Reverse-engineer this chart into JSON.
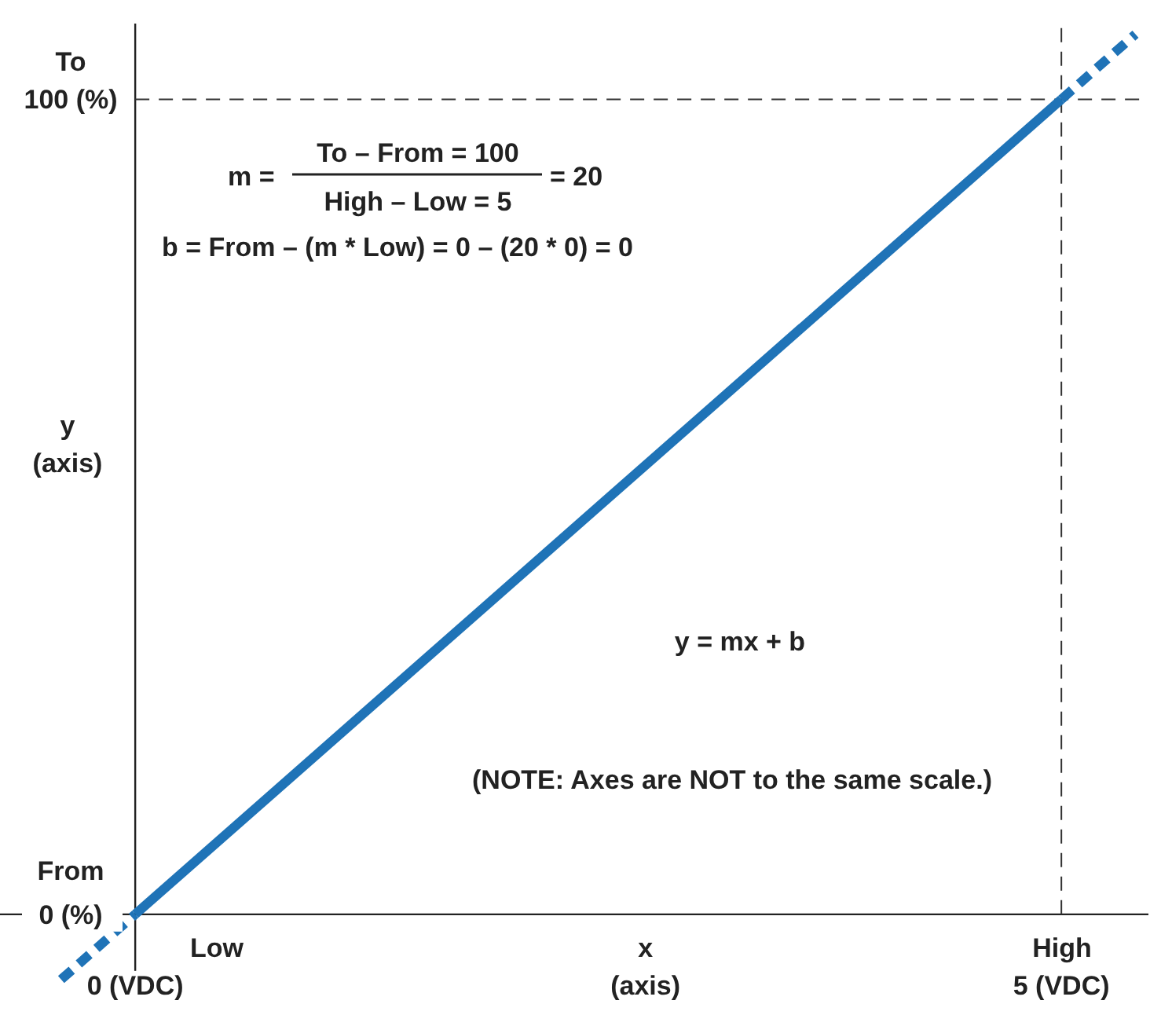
{
  "chart_data": {
    "type": "line",
    "xlabel": "x\n(axis)",
    "ylabel": "y\n(axis)",
    "xlim": [
      -0.73,
      5.47
    ],
    "ylim": [
      -8.5,
      109.3
    ],
    "xticks": [
      {
        "value": 0,
        "label": "0 (VDC)"
      },
      {
        "value": 5,
        "label": "5 (VDC)"
      }
    ],
    "yticks": [
      {
        "value": 0,
        "label": "0 (%)"
      },
      {
        "value": 100,
        "label": "100 (%)"
      }
    ],
    "series": [
      {
        "color": "#1f73b7",
        "x": [
          0,
          5
        ],
        "values": [
          0,
          100
        ],
        "line_style": "solid"
      },
      {
        "color": "#1f73b7",
        "x": [
          -0.4,
          0
        ],
        "values": [
          -8,
          0
        ],
        "line_style": "dashed"
      },
      {
        "color": "#1f73b7",
        "x": [
          5,
          5.4
        ],
        "values": [
          100,
          108
        ],
        "line_style": "dashed"
      }
    ],
    "ref_lines": [
      {
        "axis": "x",
        "value": 5,
        "color": "#333333",
        "line_style": "dashed"
      },
      {
        "axis": "y",
        "value": 100,
        "color": "#333333",
        "line_style": "dashed"
      }
    ],
    "annotations": [
      "Low",
      "High",
      "From",
      "To",
      "m =",
      "To – From = 100",
      "High – Low = 5",
      "= 20",
      "b = From – (m * Low) = 0 – (20 * 0) = 0",
      "y = mx + b",
      "(NOTE: Axes are NOT to the same scale.)"
    ],
    "grid": false
  }
}
